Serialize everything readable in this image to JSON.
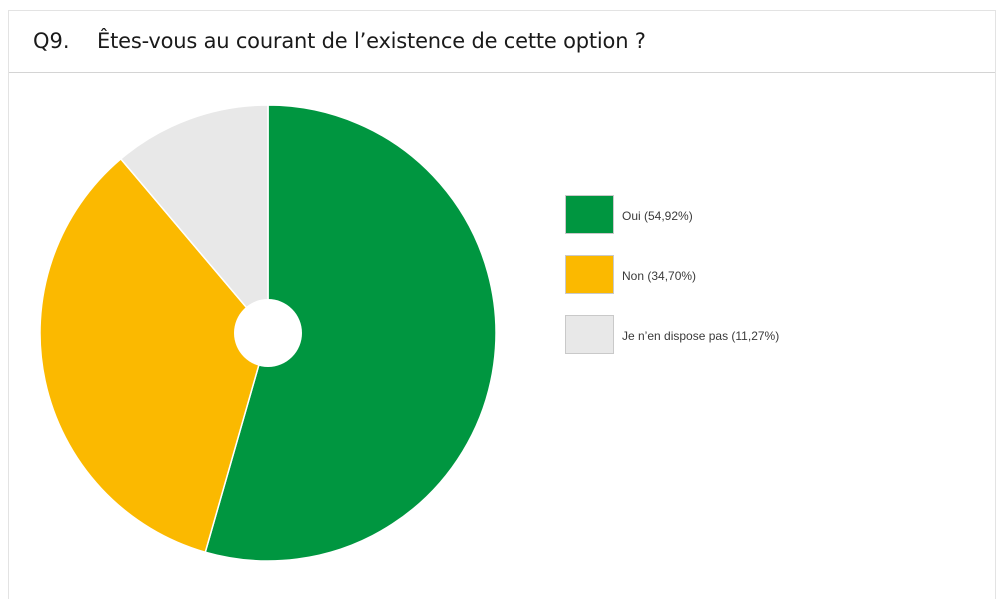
{
  "question": {
    "number": "Q9.",
    "text": "Êtes-vous au courant de l’existence de cette option ?"
  },
  "chart_data": {
    "type": "pie",
    "title": "",
    "categories": [
      "Oui",
      "Non",
      "Je n’en dispose pas"
    ],
    "values": [
      54.92,
      34.7,
      11.27
    ],
    "colors": [
      "#009640",
      "#fbb900",
      "#e8e8e8"
    ],
    "donut_hole": true,
    "legend_placement": "right",
    "legend": [
      {
        "label": "Oui (54,92%)",
        "color": "#009640"
      },
      {
        "label": "Non (34,70%)",
        "color": "#fbb900"
      },
      {
        "label": "Je n’en dispose pas (11,27%)",
        "color": "#e8e8e8"
      }
    ]
  }
}
